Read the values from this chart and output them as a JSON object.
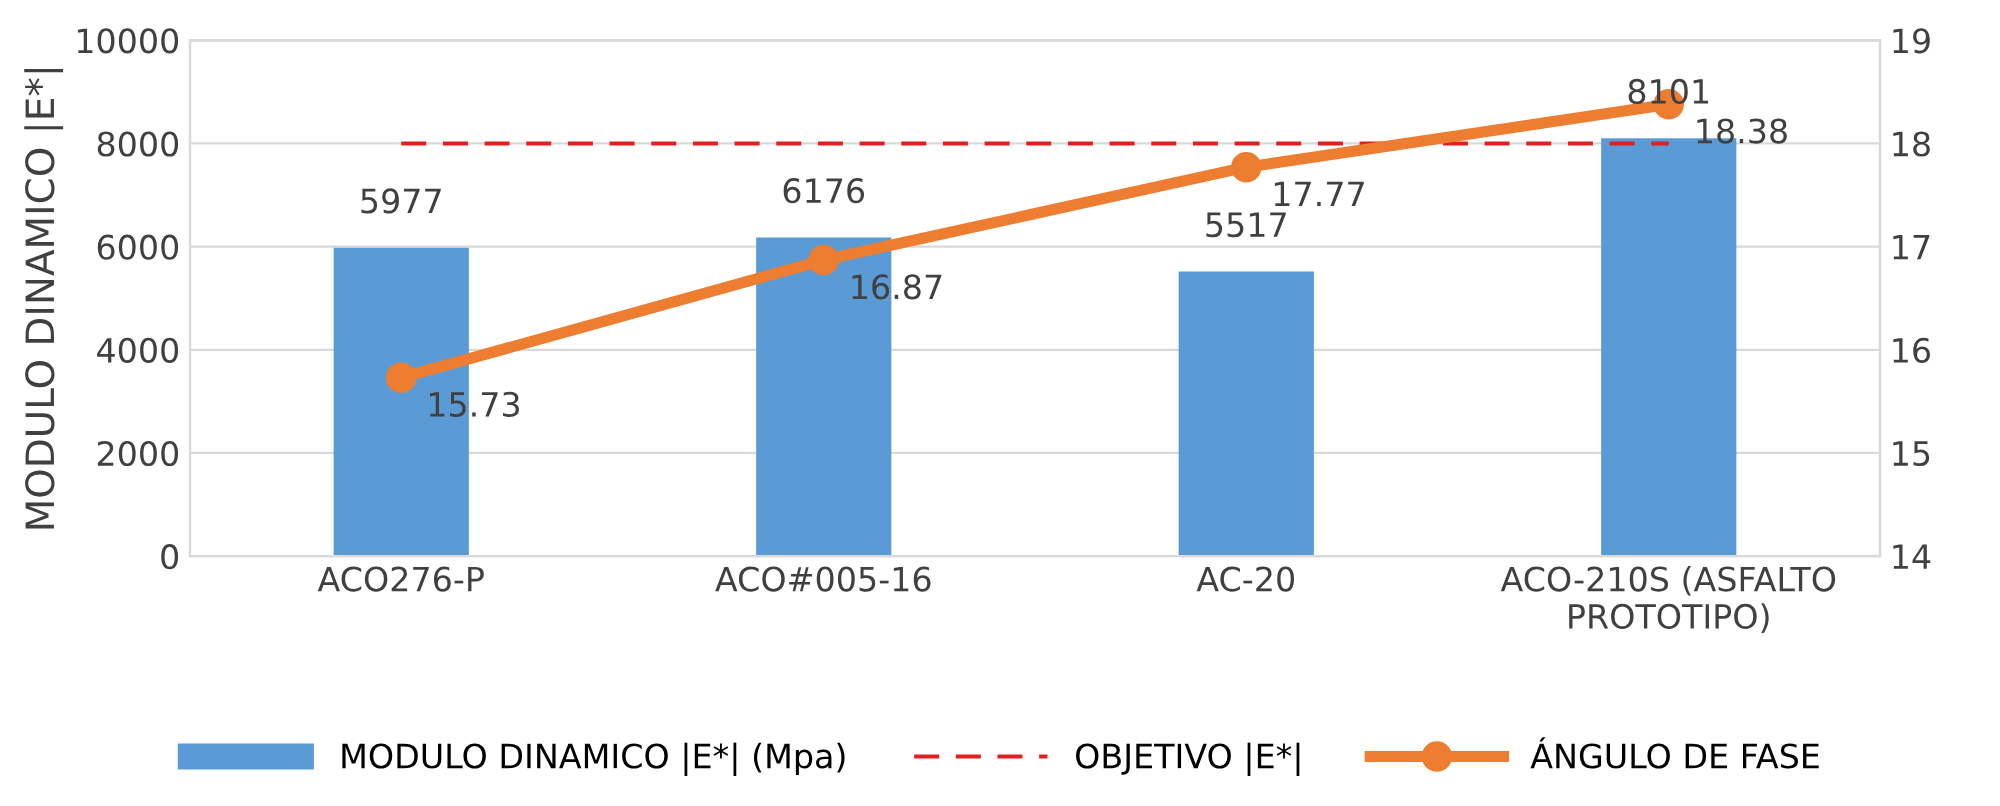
{
  "chart_data": {
    "type": "bar",
    "ylabel": "MODULO DINAMICO |E*|",
    "categories": [
      "ACO276-P",
      "ACO#005-16",
      "AC-20",
      "ACO-210S (ASFALTO\nPROTOTIPO)"
    ],
    "series": [
      {
        "name": "MODULO DINAMICO |E*| (Mpa)",
        "color": "#5b9bd5",
        "values": [
          5977,
          6176,
          5517,
          8101
        ]
      },
      {
        "name": "ÁNGULO DE FASE",
        "type": "line",
        "axis": "y2",
        "color": "#ed7d31",
        "marker": "circle",
        "values": [
          15.73,
          16.87,
          17.77,
          18.38
        ]
      }
    ],
    "ref_lines": [
      {
        "axis": "y",
        "value": 8000,
        "label": "OBJETIVO |E*|",
        "color": "#e02020",
        "line_style": "dashed"
      }
    ],
    "ylim": [
      0,
      10000
    ],
    "yticks": [
      0,
      2000,
      4000,
      6000,
      8000,
      10000
    ],
    "y2lim": [
      14,
      19
    ],
    "y2ticks": [
      14,
      15,
      16,
      17,
      18,
      19
    ],
    "data_labels": true,
    "grid": "y",
    "legend": "bottom"
  }
}
